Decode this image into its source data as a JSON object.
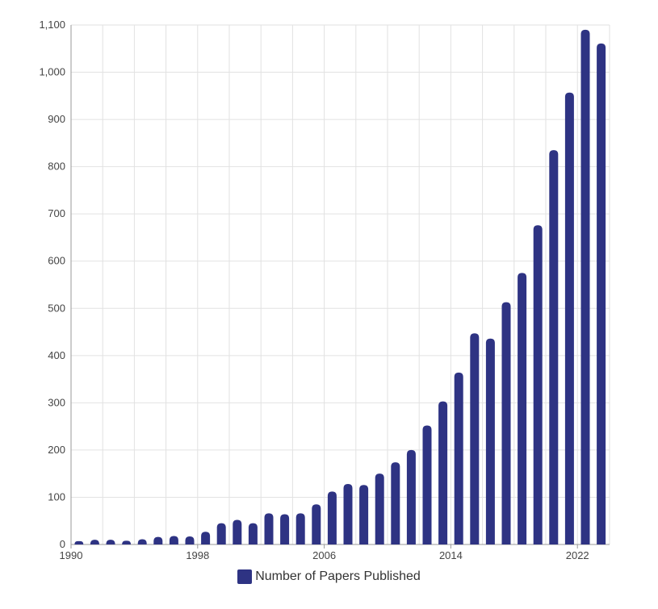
{
  "chart_data": {
    "type": "bar",
    "title": "",
    "xlabel": "",
    "ylabel": "",
    "categories": [
      1990,
      1991,
      1992,
      1993,
      1994,
      1995,
      1996,
      1997,
      1998,
      1999,
      2000,
      2001,
      2002,
      2003,
      2004,
      2005,
      2006,
      2007,
      2008,
      2009,
      2010,
      2011,
      2012,
      2013,
      2014,
      2015,
      2016,
      2017,
      2018,
      2019,
      2020,
      2021,
      2022,
      2023
    ],
    "series": [
      {
        "name": "Number of Papers Published",
        "color": "#2e3383",
        "values": [
          7,
          10,
          10,
          8,
          11,
          16,
          18,
          17,
          27,
          45,
          52,
          45,
          66,
          64,
          66,
          85,
          112,
          128,
          126,
          150,
          174,
          200,
          252,
          303,
          364,
          447,
          436,
          513,
          575,
          676,
          835,
          957,
          1090,
          1061
        ]
      }
    ],
    "ylim": [
      0,
      1100
    ],
    "yticks": [
      0,
      100,
      200,
      300,
      400,
      500,
      600,
      700,
      800,
      900,
      1000,
      1100
    ],
    "ytick_labels": [
      "0",
      "100",
      "200",
      "300",
      "400",
      "500",
      "600",
      "700",
      "800",
      "900",
      "1,000",
      "1,100"
    ],
    "xtick_labels": [
      {
        "year": 1990,
        "label": "1990"
      },
      {
        "year": 1998,
        "label": "1998"
      },
      {
        "year": 2006,
        "label": "2006"
      },
      {
        "year": 2014,
        "label": "2014"
      },
      {
        "year": 2022,
        "label": "2022"
      }
    ],
    "grid": true,
    "legend_position": "bottom-center"
  }
}
